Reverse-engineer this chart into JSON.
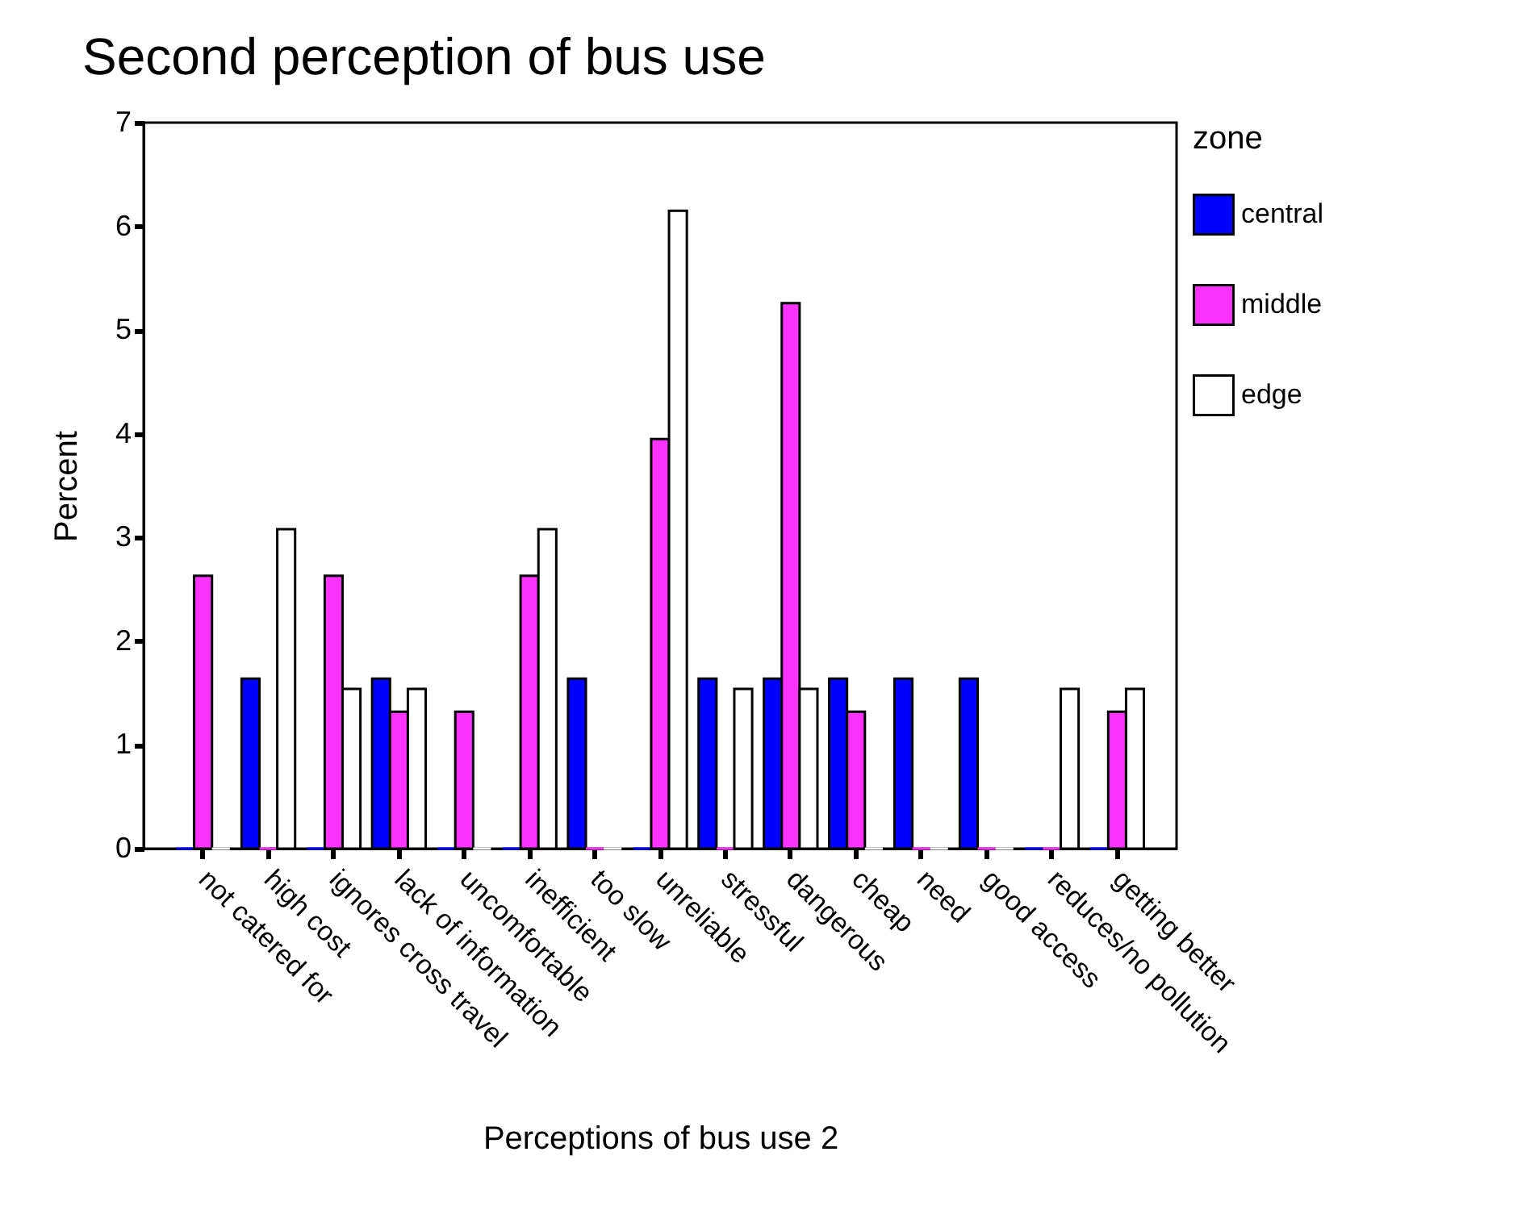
{
  "chart_data": {
    "type": "bar",
    "title": "Second perception of bus use",
    "xlabel": "Perceptions of bus use 2",
    "ylabel": "Percent",
    "legend_title": "zone",
    "categories": [
      "not catered for",
      "high cost",
      "ignores cross travel",
      "lack of information",
      "uncomfortable",
      "inefficient",
      "too slow",
      "unreliable",
      "stressful",
      "dangerous",
      "cheap",
      "need",
      "good access",
      "reduces/no pollution",
      "getting better"
    ],
    "series": [
      {
        "name": "central",
        "color": "#0000ff",
        "values": [
          0,
          1.64,
          0,
          1.64,
          0,
          0,
          1.64,
          0,
          1.64,
          1.64,
          1.64,
          1.64,
          1.64,
          0,
          0
        ]
      },
      {
        "name": "middle",
        "color": "#ff33ff",
        "values": [
          2.63,
          0,
          2.63,
          1.32,
          1.32,
          2.63,
          0,
          3.95,
          0,
          5.26,
          1.32,
          0,
          0,
          0,
          1.32
        ]
      },
      {
        "name": "edge",
        "color": "#ffffff",
        "values": [
          0,
          3.08,
          1.54,
          1.54,
          0,
          3.08,
          0,
          6.15,
          1.54,
          1.54,
          0,
          0,
          0,
          1.54,
          1.54
        ]
      }
    ],
    "ylim": [
      0,
      7
    ],
    "yticks": [
      0,
      1,
      2,
      3,
      4,
      5,
      6,
      7
    ],
    "grid": false,
    "legend": "right"
  }
}
